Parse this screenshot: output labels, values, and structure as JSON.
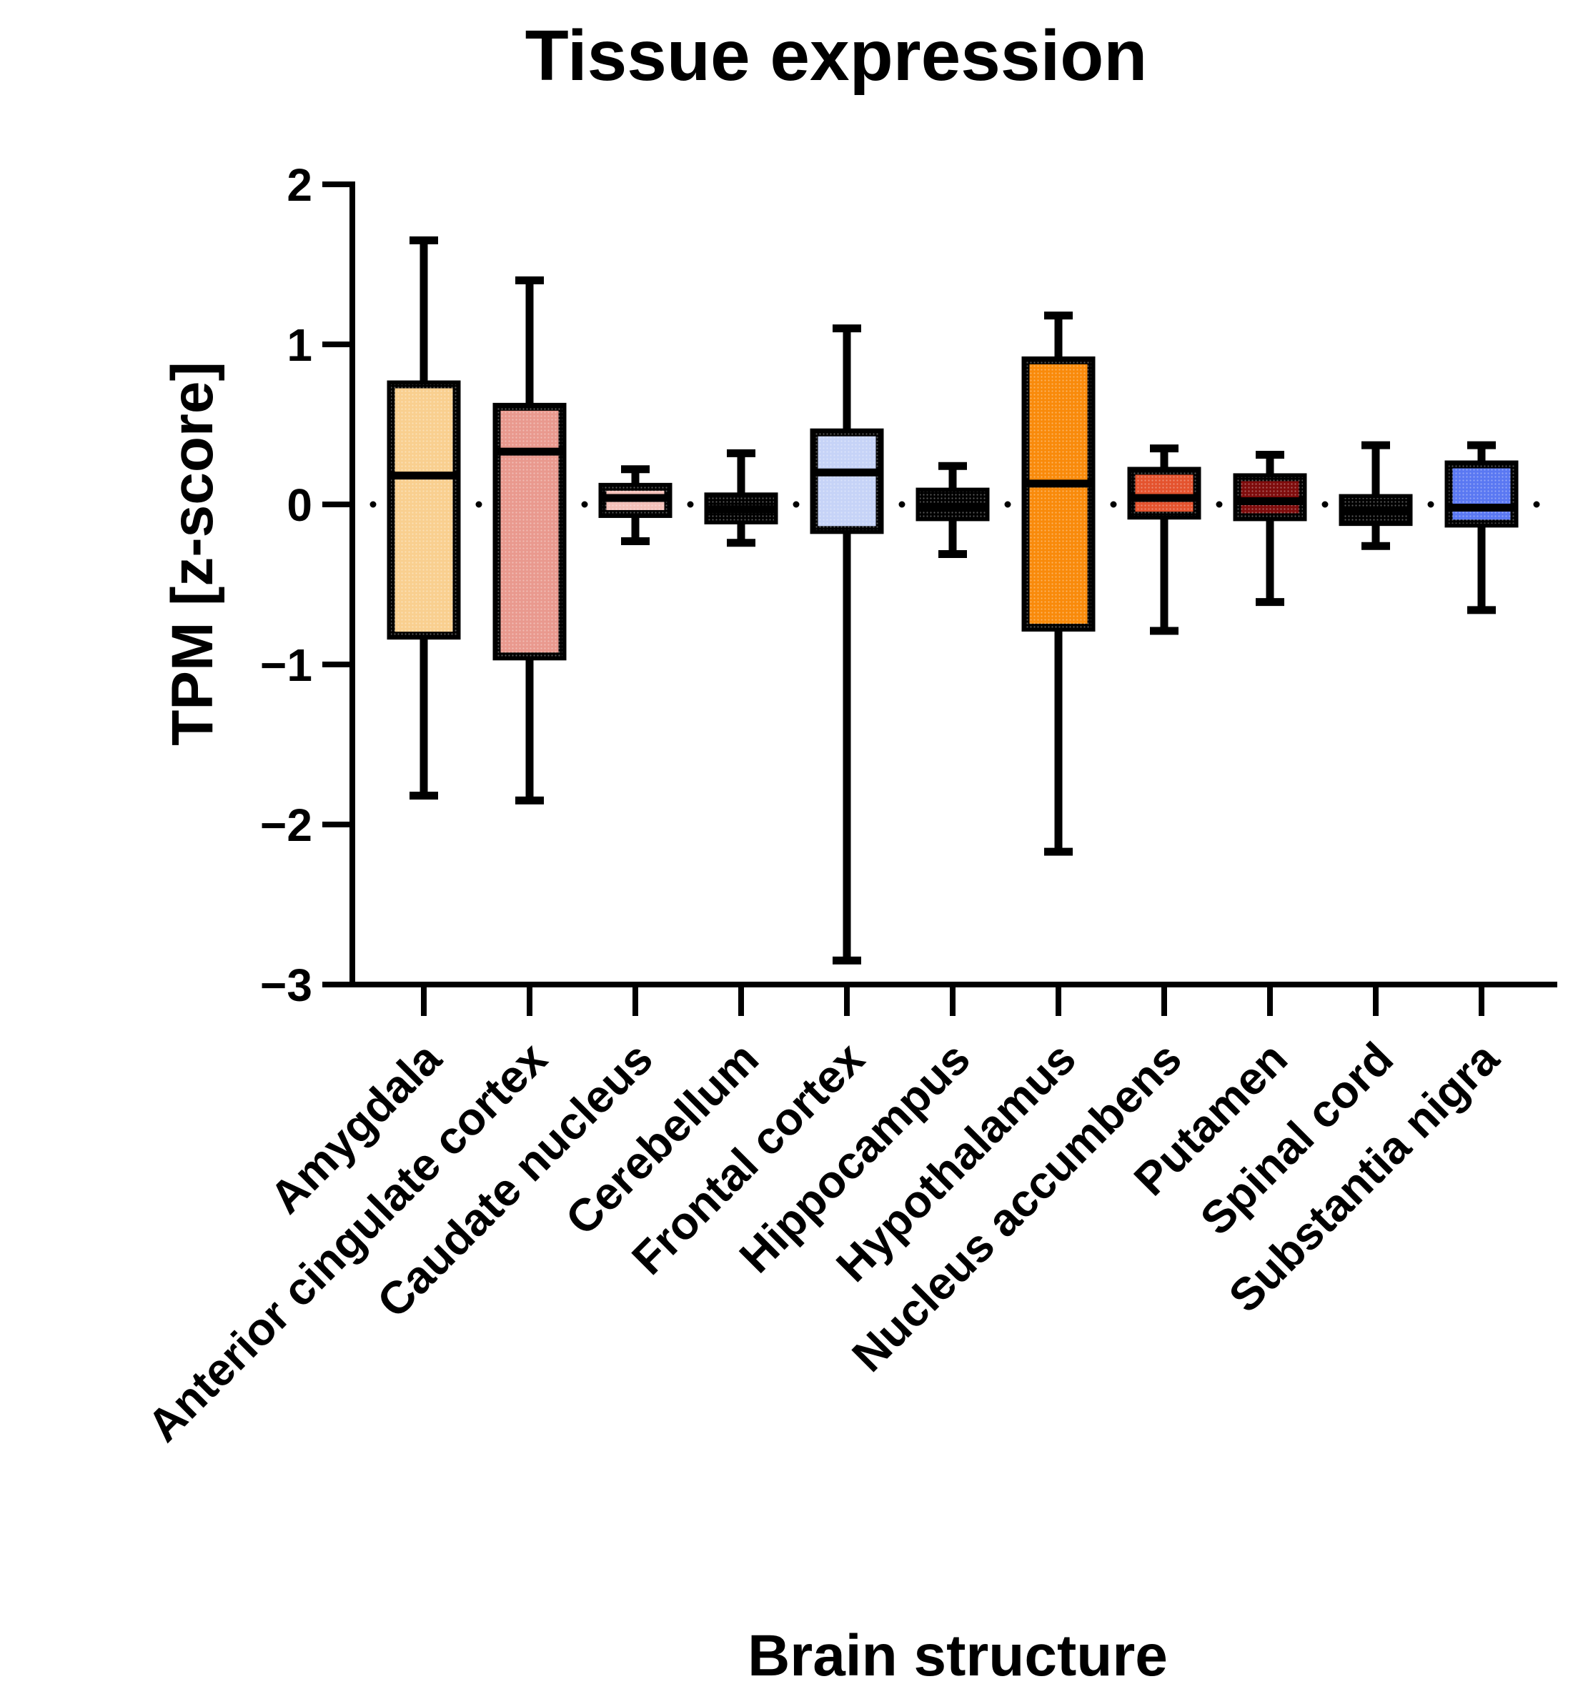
{
  "chart_data": {
    "type": "box",
    "title": "Tissue expression",
    "xlabel": "Brain structure",
    "ylabel": "TPM [z-score]",
    "ylim": [
      -3,
      2
    ],
    "yticks": [
      2,
      1,
      0,
      -1,
      -2,
      -3
    ],
    "ytick_labels": [
      "2",
      "1",
      "0",
      "−1",
      "−2",
      "−3"
    ],
    "reference_line": {
      "y": 0,
      "style": "dotted"
    },
    "grid": false,
    "categories": [
      "Amygdala",
      "Anterior cingulate cortex",
      "Caudate nucleus",
      "Cerebellum",
      "Frontal cortex",
      "Hippocampus",
      "Hypothalamus",
      "Nucleus accumbens",
      "Putamen",
      "Spinal cord",
      "Substantia nigra"
    ],
    "boxes": [
      {
        "name": "Amygdala",
        "min": -1.82,
        "q1": -0.82,
        "median": 0.18,
        "q3": 0.75,
        "max": 1.65,
        "color": "#f9cf8f"
      },
      {
        "name": "Anterior cingulate cortex",
        "min": -1.85,
        "q1": -0.95,
        "median": 0.33,
        "q3": 0.61,
        "max": 1.4,
        "color": "#e9998e"
      },
      {
        "name": "Caudate nucleus",
        "min": -0.23,
        "q1": -0.06,
        "median": 0.04,
        "q3": 0.11,
        "max": 0.22,
        "color": "#f3c0b8"
      },
      {
        "name": "Cerebellum",
        "min": -0.24,
        "q1": -0.1,
        "median": -0.03,
        "q3": 0.05,
        "max": 0.32,
        "color": "#000000"
      },
      {
        "name": "Frontal cortex",
        "min": -2.85,
        "q1": -0.16,
        "median": 0.2,
        "q3": 0.45,
        "max": 1.1,
        "color": "#c6d3f7"
      },
      {
        "name": "Hippocampus",
        "min": -0.31,
        "q1": -0.08,
        "median": -0.02,
        "q3": 0.08,
        "max": 0.24,
        "color": "#000000"
      },
      {
        "name": "Hypothalamus",
        "min": -2.17,
        "q1": -0.77,
        "median": 0.13,
        "q3": 0.9,
        "max": 1.18,
        "color": "#f98a0a"
      },
      {
        "name": "Nucleus accumbens",
        "min": -0.79,
        "q1": -0.07,
        "median": 0.04,
        "q3": 0.21,
        "max": 0.35,
        "color": "#e4532e"
      },
      {
        "name": "Putamen",
        "min": -0.61,
        "q1": -0.08,
        "median": 0.02,
        "q3": 0.17,
        "max": 0.31,
        "color": "#7e0c0c"
      },
      {
        "name": "Spinal cord",
        "min": -0.26,
        "q1": -0.11,
        "median": -0.04,
        "q3": 0.04,
        "max": 0.37,
        "color": "#000000"
      },
      {
        "name": "Substantia nigra",
        "min": -0.66,
        "q1": -0.12,
        "median": -0.02,
        "q3": 0.25,
        "max": 0.37,
        "color": "#5a78f2"
      }
    ]
  }
}
